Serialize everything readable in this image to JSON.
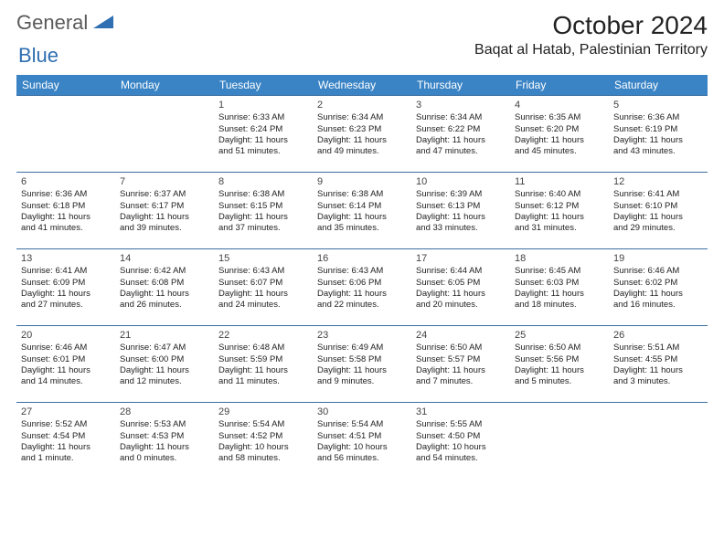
{
  "logo": {
    "text1": "General",
    "text2": "Blue"
  },
  "title": "October 2024",
  "location": "Baqat al Hatab, Palestinian Territory",
  "colors": {
    "header_bg": "#3a84c5",
    "header_text": "#ffffff",
    "cell_border": "#3a6ea0",
    "logo_gray": "#5a5a5a",
    "logo_blue": "#2f6fb2",
    "body_text": "#222222",
    "background": "#ffffff"
  },
  "day_headers": [
    "Sunday",
    "Monday",
    "Tuesday",
    "Wednesday",
    "Thursday",
    "Friday",
    "Saturday"
  ],
  "weeks": [
    [
      null,
      null,
      {
        "n": "1",
        "sr": "Sunrise: 6:33 AM",
        "ss": "Sunset: 6:24 PM",
        "d1": "Daylight: 11 hours",
        "d2": "and 51 minutes."
      },
      {
        "n": "2",
        "sr": "Sunrise: 6:34 AM",
        "ss": "Sunset: 6:23 PM",
        "d1": "Daylight: 11 hours",
        "d2": "and 49 minutes."
      },
      {
        "n": "3",
        "sr": "Sunrise: 6:34 AM",
        "ss": "Sunset: 6:22 PM",
        "d1": "Daylight: 11 hours",
        "d2": "and 47 minutes."
      },
      {
        "n": "4",
        "sr": "Sunrise: 6:35 AM",
        "ss": "Sunset: 6:20 PM",
        "d1": "Daylight: 11 hours",
        "d2": "and 45 minutes."
      },
      {
        "n": "5",
        "sr": "Sunrise: 6:36 AM",
        "ss": "Sunset: 6:19 PM",
        "d1": "Daylight: 11 hours",
        "d2": "and 43 minutes."
      }
    ],
    [
      {
        "n": "6",
        "sr": "Sunrise: 6:36 AM",
        "ss": "Sunset: 6:18 PM",
        "d1": "Daylight: 11 hours",
        "d2": "and 41 minutes."
      },
      {
        "n": "7",
        "sr": "Sunrise: 6:37 AM",
        "ss": "Sunset: 6:17 PM",
        "d1": "Daylight: 11 hours",
        "d2": "and 39 minutes."
      },
      {
        "n": "8",
        "sr": "Sunrise: 6:38 AM",
        "ss": "Sunset: 6:15 PM",
        "d1": "Daylight: 11 hours",
        "d2": "and 37 minutes."
      },
      {
        "n": "9",
        "sr": "Sunrise: 6:38 AM",
        "ss": "Sunset: 6:14 PM",
        "d1": "Daylight: 11 hours",
        "d2": "and 35 minutes."
      },
      {
        "n": "10",
        "sr": "Sunrise: 6:39 AM",
        "ss": "Sunset: 6:13 PM",
        "d1": "Daylight: 11 hours",
        "d2": "and 33 minutes."
      },
      {
        "n": "11",
        "sr": "Sunrise: 6:40 AM",
        "ss": "Sunset: 6:12 PM",
        "d1": "Daylight: 11 hours",
        "d2": "and 31 minutes."
      },
      {
        "n": "12",
        "sr": "Sunrise: 6:41 AM",
        "ss": "Sunset: 6:10 PM",
        "d1": "Daylight: 11 hours",
        "d2": "and 29 minutes."
      }
    ],
    [
      {
        "n": "13",
        "sr": "Sunrise: 6:41 AM",
        "ss": "Sunset: 6:09 PM",
        "d1": "Daylight: 11 hours",
        "d2": "and 27 minutes."
      },
      {
        "n": "14",
        "sr": "Sunrise: 6:42 AM",
        "ss": "Sunset: 6:08 PM",
        "d1": "Daylight: 11 hours",
        "d2": "and 26 minutes."
      },
      {
        "n": "15",
        "sr": "Sunrise: 6:43 AM",
        "ss": "Sunset: 6:07 PM",
        "d1": "Daylight: 11 hours",
        "d2": "and 24 minutes."
      },
      {
        "n": "16",
        "sr": "Sunrise: 6:43 AM",
        "ss": "Sunset: 6:06 PM",
        "d1": "Daylight: 11 hours",
        "d2": "and 22 minutes."
      },
      {
        "n": "17",
        "sr": "Sunrise: 6:44 AM",
        "ss": "Sunset: 6:05 PM",
        "d1": "Daylight: 11 hours",
        "d2": "and 20 minutes."
      },
      {
        "n": "18",
        "sr": "Sunrise: 6:45 AM",
        "ss": "Sunset: 6:03 PM",
        "d1": "Daylight: 11 hours",
        "d2": "and 18 minutes."
      },
      {
        "n": "19",
        "sr": "Sunrise: 6:46 AM",
        "ss": "Sunset: 6:02 PM",
        "d1": "Daylight: 11 hours",
        "d2": "and 16 minutes."
      }
    ],
    [
      {
        "n": "20",
        "sr": "Sunrise: 6:46 AM",
        "ss": "Sunset: 6:01 PM",
        "d1": "Daylight: 11 hours",
        "d2": "and 14 minutes."
      },
      {
        "n": "21",
        "sr": "Sunrise: 6:47 AM",
        "ss": "Sunset: 6:00 PM",
        "d1": "Daylight: 11 hours",
        "d2": "and 12 minutes."
      },
      {
        "n": "22",
        "sr": "Sunrise: 6:48 AM",
        "ss": "Sunset: 5:59 PM",
        "d1": "Daylight: 11 hours",
        "d2": "and 11 minutes."
      },
      {
        "n": "23",
        "sr": "Sunrise: 6:49 AM",
        "ss": "Sunset: 5:58 PM",
        "d1": "Daylight: 11 hours",
        "d2": "and 9 minutes."
      },
      {
        "n": "24",
        "sr": "Sunrise: 6:50 AM",
        "ss": "Sunset: 5:57 PM",
        "d1": "Daylight: 11 hours",
        "d2": "and 7 minutes."
      },
      {
        "n": "25",
        "sr": "Sunrise: 6:50 AM",
        "ss": "Sunset: 5:56 PM",
        "d1": "Daylight: 11 hours",
        "d2": "and 5 minutes."
      },
      {
        "n": "26",
        "sr": "Sunrise: 5:51 AM",
        "ss": "Sunset: 4:55 PM",
        "d1": "Daylight: 11 hours",
        "d2": "and 3 minutes."
      }
    ],
    [
      {
        "n": "27",
        "sr": "Sunrise: 5:52 AM",
        "ss": "Sunset: 4:54 PM",
        "d1": "Daylight: 11 hours",
        "d2": "and 1 minute."
      },
      {
        "n": "28",
        "sr": "Sunrise: 5:53 AM",
        "ss": "Sunset: 4:53 PM",
        "d1": "Daylight: 11 hours",
        "d2": "and 0 minutes."
      },
      {
        "n": "29",
        "sr": "Sunrise: 5:54 AM",
        "ss": "Sunset: 4:52 PM",
        "d1": "Daylight: 10 hours",
        "d2": "and 58 minutes."
      },
      {
        "n": "30",
        "sr": "Sunrise: 5:54 AM",
        "ss": "Sunset: 4:51 PM",
        "d1": "Daylight: 10 hours",
        "d2": "and 56 minutes."
      },
      {
        "n": "31",
        "sr": "Sunrise: 5:55 AM",
        "ss": "Sunset: 4:50 PM",
        "d1": "Daylight: 10 hours",
        "d2": "and 54 minutes."
      },
      null,
      null
    ]
  ]
}
